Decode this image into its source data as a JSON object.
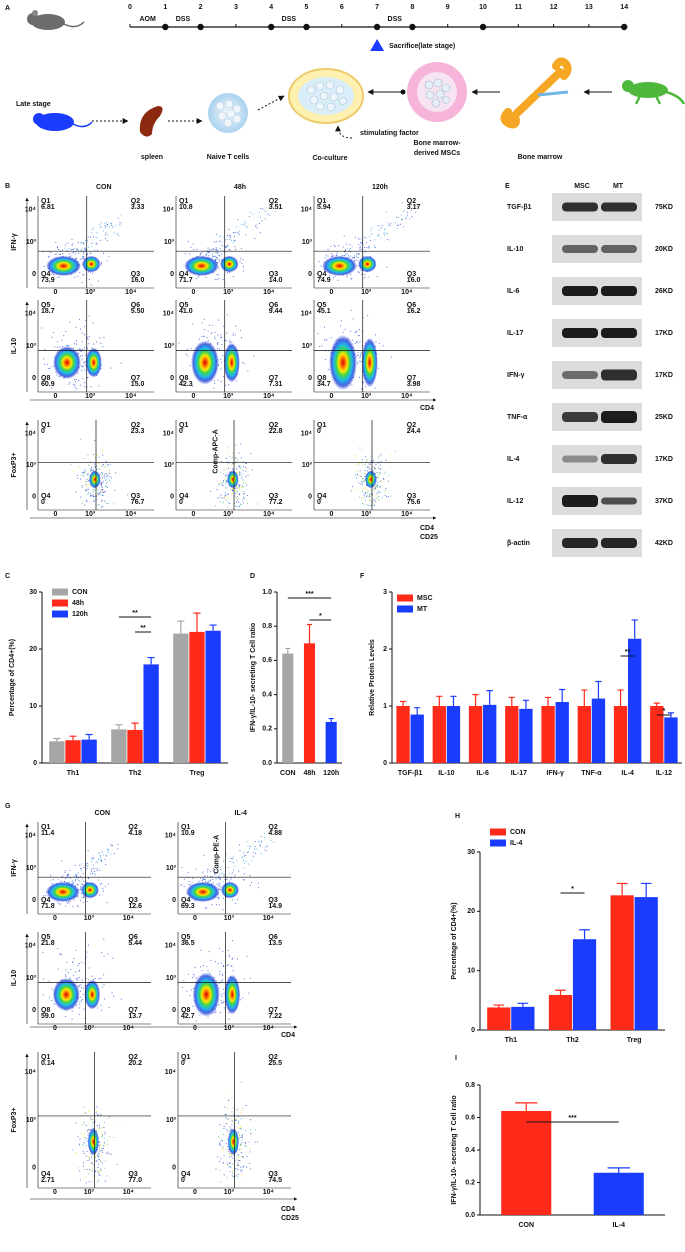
{
  "panel_labels": [
    "A",
    "B",
    "C",
    "D",
    "E",
    "F",
    "G",
    "H",
    "I"
  ],
  "schematic": {
    "timeline_ticks": [
      0,
      1,
      2,
      3,
      4,
      5,
      6,
      7,
      8,
      9,
      10,
      11,
      12,
      13,
      14
    ],
    "treatments": [
      "AOM",
      "DSS",
      "DSS",
      "DSS"
    ],
    "sacrifice": "Sacrifice(late stage)",
    "late_stage": "Late stage",
    "spleen": "spleen",
    "naive": "Naive T cells",
    "coculture": "Co-culture",
    "stimulating": "stimulating factor",
    "msc": [
      "Bone marrow-",
      "derived MSCs"
    ],
    "bone_marrow": "Bone marrow"
  },
  "flow_ticks": [
    "0",
    "10³",
    "10⁴"
  ],
  "flow_B": {
    "columns": [
      "CON",
      "48h",
      "120h"
    ],
    "rows": [
      "IFN-γ",
      "IL-10",
      "FoxP3+"
    ],
    "axis_row2": "CD4",
    "axis_row3": [
      "CD4",
      "CD25"
    ],
    "channel": "Comp-APC-A",
    "plots": [
      [
        [
          [
            "Q1",
            "6.81"
          ],
          [
            "Q2",
            "3.33"
          ],
          [
            "Q3",
            "16.0"
          ],
          [
            "Q4",
            "73.9"
          ]
        ],
        [
          [
            "Q1",
            "10.8"
          ],
          [
            "Q2",
            "3.51"
          ],
          [
            "Q3",
            "14.0"
          ],
          [
            "Q4",
            "71.7"
          ]
        ],
        [
          [
            "Q1",
            "5.94"
          ],
          [
            "Q2",
            "3.17"
          ],
          [
            "Q3",
            "16.0"
          ],
          [
            "Q4",
            "74.9"
          ]
        ]
      ],
      [
        [
          [
            "Q5",
            "18.7"
          ],
          [
            "Q6",
            "5.50"
          ],
          [
            "Q7",
            "15.0"
          ],
          [
            "Q8",
            "60.9"
          ]
        ],
        [
          [
            "Q5",
            "41.0"
          ],
          [
            "Q6",
            "9.44"
          ],
          [
            "Q7",
            "7.31"
          ],
          [
            "Q8",
            "42.3"
          ]
        ],
        [
          [
            "Q5",
            "45.1"
          ],
          [
            "Q6",
            "16.2"
          ],
          [
            "Q7",
            "3.98"
          ],
          [
            "Q8",
            "34.7"
          ]
        ]
      ],
      [
        [
          [
            "Q1",
            "0"
          ],
          [
            "Q2",
            "23.3"
          ],
          [
            "Q3",
            "76.7"
          ],
          [
            "Q4",
            "0"
          ]
        ],
        [
          [
            "Q1",
            "0"
          ],
          [
            "Q2",
            "22.8"
          ],
          [
            "Q3",
            "77.2"
          ],
          [
            "Q4",
            "0"
          ]
        ],
        [
          [
            "Q1",
            "0"
          ],
          [
            "Q2",
            "24.4"
          ],
          [
            "Q3",
            "75.6"
          ],
          [
            "Q4",
            "0"
          ]
        ]
      ]
    ]
  },
  "flow_G": {
    "columns": [
      "CON",
      "IL-4"
    ],
    "rows": [
      "IFN-γ",
      "IL-10",
      "FoxP3+"
    ],
    "axis_row2": "CD4",
    "axis_row3": [
      "CD4",
      "CD25"
    ],
    "channel": "Comp-PE-A",
    "plots": [
      [
        [
          [
            "Q1",
            "11.4"
          ],
          [
            "Q2",
            "4.18"
          ],
          [
            "Q3",
            "12.6"
          ],
          [
            "Q4",
            "71.8"
          ]
        ],
        [
          [
            "Q1",
            "10.9"
          ],
          [
            "Q2",
            "4.88"
          ],
          [
            "Q3",
            "14.9"
          ],
          [
            "Q4",
            "69.3"
          ]
        ]
      ],
      [
        [
          [
            "Q5",
            "21.8"
          ],
          [
            "Q6",
            "5.44"
          ],
          [
            "Q7",
            "13.7"
          ],
          [
            "Q8",
            "59.0"
          ]
        ],
        [
          [
            "Q5",
            "36.5"
          ],
          [
            "Q6",
            "13.5"
          ],
          [
            "Q7",
            "7.22"
          ],
          [
            "Q8",
            "42.7"
          ]
        ]
      ],
      [
        [
          [
            "Q1",
            "0.14"
          ],
          [
            "Q2",
            "20.2"
          ],
          [
            "Q3",
            "77.0"
          ],
          [
            "Q4",
            "2.71"
          ]
        ],
        [
          [
            "Q1",
            "0"
          ],
          [
            "Q2",
            "25.5"
          ],
          [
            "Q3",
            "74.5"
          ],
          [
            "Q4",
            "0"
          ]
        ]
      ]
    ]
  },
  "western": {
    "columns": [
      "MSC",
      "MT"
    ],
    "rows": [
      [
        "TGF-β1",
        "75KD"
      ],
      [
        "IL-10",
        "20KD"
      ],
      [
        "IL-6",
        "26KD"
      ],
      [
        "IL-17",
        "17KD"
      ],
      [
        "IFN-γ",
        "17KD"
      ],
      [
        "TNF-α",
        "25KD"
      ],
      [
        "IL-4",
        "17KD"
      ],
      [
        "IL-12",
        "37KD"
      ],
      [
        "β-actin",
        "42KD"
      ]
    ]
  },
  "chart_data": [
    {
      "type": "bar",
      "y_label": "Percentage of CD4+(%)",
      "categories": [
        "Th1",
        "Th2",
        "Treg"
      ],
      "series": [
        {
          "name": "CON",
          "color": "#a6a6a6",
          "values": [
            3.8,
            5.9,
            22.7
          ],
          "errors": [
            0.5,
            0.8,
            2.2
          ]
        },
        {
          "name": "48h",
          "color": "#ff2a1a",
          "values": [
            4.0,
            5.8,
            23.0
          ],
          "errors": [
            0.7,
            1.2,
            3.3
          ]
        },
        {
          "name": "120h",
          "color": "#1a3cff",
          "values": [
            4.1,
            17.3,
            23.2
          ],
          "errors": [
            0.9,
            1.2,
            1.0
          ]
        }
      ],
      "ylim": [
        0,
        30
      ],
      "yticks": [
        0,
        10,
        20,
        30
      ],
      "annotations": [
        "**",
        "**"
      ]
    },
    {
      "type": "bar",
      "y_label": "IFN-γ/IL-10- secreting T Cell ratio",
      "categories": [
        "CON",
        "48h",
        "120h"
      ],
      "values": [
        0.64,
        0.7,
        0.24
      ],
      "errors": [
        0.03,
        0.11,
        0.02
      ],
      "colors": [
        "#a6a6a6",
        "#ff2a1a",
        "#1a3cff"
      ],
      "ylim": [
        0,
        1
      ],
      "yticks": [
        {
          "value": 0,
          "label": "0.0"
        },
        0.2,
        0.4,
        0.6,
        0.8,
        {
          "value": 1,
          "label": "1.0"
        }
      ],
      "annotations": [
        "***",
        "*"
      ]
    },
    {
      "type": "bar",
      "y_label": "Relative Protein Levels",
      "categories": [
        "TGF-β1",
        "IL-10",
        "IL-6",
        "IL-17",
        "IFN-γ",
        "TNF-α",
        "IL-4",
        "IL-12"
      ],
      "series": [
        {
          "name": "MSC",
          "color": "#ff2a1a",
          "values": [
            1.0,
            1.0,
            1.0,
            1.0,
            1.0,
            1.0,
            1.0,
            1.0
          ],
          "errors": [
            0.08,
            0.17,
            0.2,
            0.15,
            0.15,
            0.28,
            0.28,
            0.05
          ]
        },
        {
          "name": "MT",
          "color": "#1a3cff",
          "values": [
            0.85,
            1.0,
            1.02,
            0.95,
            1.07,
            1.13,
            2.18,
            0.8
          ],
          "errors": [
            0.12,
            0.17,
            0.25,
            0.15,
            0.22,
            0.3,
            0.33,
            0.08
          ]
        }
      ],
      "ylim": [
        0,
        3
      ],
      "yticks": [
        0,
        1,
        2,
        3
      ],
      "annotations": [
        "**",
        "*"
      ]
    },
    {
      "type": "bar",
      "y_label": "Percentage of CD4+(%)",
      "categories": [
        "Th1",
        "Th2",
        "Treg"
      ],
      "series": [
        {
          "name": "CON",
          "color": "#ff2a1a",
          "values": [
            3.8,
            5.9,
            22.7
          ],
          "errors": [
            0.4,
            0.8,
            2.0
          ]
        },
        {
          "name": "IL-4",
          "color": "#1a3cff",
          "values": [
            3.9,
            15.3,
            22.4
          ],
          "errors": [
            0.6,
            1.6,
            2.3
          ]
        }
      ],
      "ylim": [
        0,
        30
      ],
      "yticks": [
        0,
        10,
        20,
        30
      ],
      "annotations": [
        "*"
      ]
    },
    {
      "type": "bar",
      "y_label": "IFN-γ/IL-10- secreting T Cell ratio",
      "categories": [
        "CON",
        "IL-4"
      ],
      "values": [
        0.64,
        0.26
      ],
      "errors": [
        0.05,
        0.03
      ],
      "colors": [
        "#ff2a1a",
        "#1a3cff"
      ],
      "ylim": [
        0,
        0.8
      ],
      "yticks": [
        {
          "value": 0,
          "label": "0.0"
        },
        0.2,
        0.4,
        0.6,
        0.8
      ],
      "annotations": [
        "***"
      ]
    }
  ]
}
